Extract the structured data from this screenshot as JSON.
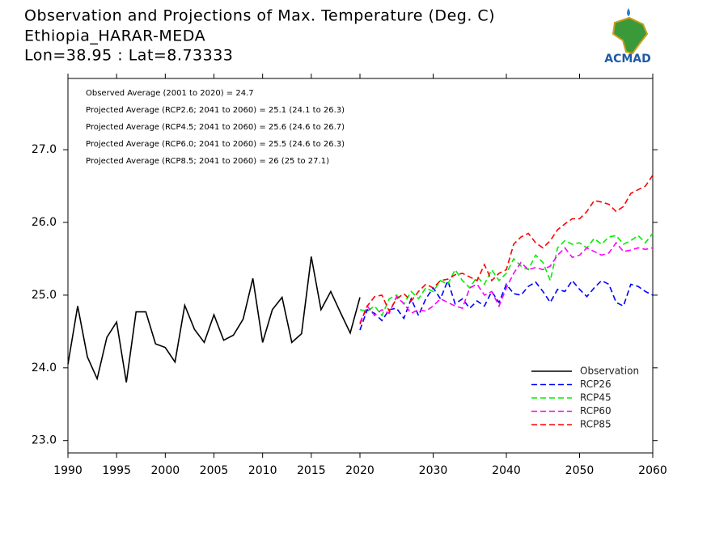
{
  "chart_data": {
    "type": "line",
    "title": "Observation and Projections of Max. Temperature (Deg. C)",
    "subtitle": "Ethiopia_HARAR-MEDA",
    "location": "Lon=38.95 : Lat=8.73333",
    "logo_text": "ACMAD",
    "annotations": [
      "Observed Average (2001 to 2020) = 24.7",
      "Projected Average (RCP2.6; 2041 to 2060) = 25.1 (24.1 to 26.3)",
      "Projected Average (RCP4.5; 2041 to 2060) = 25.6 (24.6 to 26.7)",
      "Projected Average (RCP6.0; 2041 to 2060) = 25.5 (24.6 to 26.3)",
      "Projected Average (RCP8.5; 2041 to 2060) = 26 (25 to 27.1)"
    ],
    "xlim": [
      1990,
      2060
    ],
    "xticks": [
      1990,
      1995,
      2000,
      2005,
      2010,
      2015,
      2020,
      2030,
      2040,
      2050,
      2060
    ],
    "ylim": [
      22.83,
      27.98
    ],
    "yticks": [
      {
        "value": 23,
        "label": "23.0"
      },
      {
        "value": 24,
        "label": "24.0"
      },
      {
        "value": 25,
        "label": "25.0"
      },
      {
        "value": 26,
        "label": "26.0"
      },
      {
        "value": 27,
        "label": "27.0"
      }
    ],
    "legend": "lower right",
    "series": [
      {
        "name": "Observation",
        "color": "#000000",
        "dashed": false,
        "x": [
          1990,
          1991,
          1992,
          1993,
          1994,
          1995,
          1996,
          1997,
          1998,
          1999,
          2000,
          2001,
          2002,
          2003,
          2004,
          2005,
          2006,
          2007,
          2008,
          2009,
          2010,
          2011,
          2012,
          2013,
          2014,
          2015,
          2016,
          2017,
          2018,
          2019,
          2020
        ],
        "values": [
          24.05,
          24.85,
          24.15,
          23.85,
          24.42,
          24.63,
          23.8,
          24.77,
          24.77,
          24.33,
          24.28,
          24.08,
          24.86,
          24.53,
          24.35,
          24.73,
          24.38,
          24.45,
          24.67,
          25.23,
          24.35,
          24.8,
          24.97,
          24.35,
          24.47,
          25.53,
          24.8,
          25.05,
          24.76,
          24.48,
          24.97
        ]
      },
      {
        "name": "RCP26",
        "color": "#0000ff",
        "dashed": true,
        "x": [
          2020,
          2021,
          2022,
          2023,
          2024,
          2025,
          2026,
          2027,
          2028,
          2029,
          2030,
          2031,
          2032,
          2033,
          2034,
          2035,
          2036,
          2037,
          2038,
          2039,
          2040,
          2041,
          2042,
          2043,
          2044,
          2045,
          2046,
          2047,
          2048,
          2049,
          2050,
          2051,
          2052,
          2053,
          2054,
          2055,
          2056,
          2057,
          2058,
          2059,
          2060
        ],
        "values": [
          24.52,
          24.8,
          24.75,
          24.65,
          24.8,
          24.82,
          24.68,
          24.95,
          24.72,
          24.95,
          25.1,
          24.95,
          25.2,
          24.88,
          24.95,
          24.82,
          24.92,
          24.85,
          25.05,
          24.9,
          25.15,
          25.02,
          25.0,
          25.12,
          25.18,
          25.05,
          24.9,
          25.08,
          25.05,
          25.2,
          25.08,
          24.98,
          25.1,
          25.2,
          25.15,
          24.9,
          24.85,
          25.15,
          25.12,
          25.05,
          25.0
        ]
      },
      {
        "name": "RCP45",
        "color": "#00ee00",
        "dashed": true,
        "x": [
          2020,
          2021,
          2022,
          2023,
          2024,
          2025,
          2026,
          2027,
          2028,
          2029,
          2030,
          2031,
          2032,
          2033,
          2034,
          2035,
          2036,
          2037,
          2038,
          2039,
          2040,
          2041,
          2042,
          2043,
          2044,
          2045,
          2046,
          2047,
          2048,
          2049,
          2050,
          2051,
          2052,
          2053,
          2054,
          2055,
          2056,
          2057,
          2058,
          2059,
          2060
        ],
        "values": [
          24.8,
          24.78,
          24.85,
          24.72,
          24.95,
          25.0,
          24.88,
          25.05,
          24.95,
          25.1,
          25.05,
          25.2,
          25.15,
          25.35,
          25.2,
          25.1,
          25.25,
          25.15,
          25.35,
          25.2,
          25.3,
          25.5,
          25.4,
          25.35,
          25.55,
          25.45,
          25.2,
          25.65,
          25.75,
          25.7,
          25.72,
          25.65,
          25.78,
          25.7,
          25.8,
          25.82,
          25.7,
          25.75,
          25.82,
          25.72,
          25.85
        ]
      },
      {
        "name": "RCP60",
        "color": "#ff00ff",
        "dashed": true,
        "x": [
          2020,
          2021,
          2022,
          2023,
          2024,
          2025,
          2026,
          2027,
          2028,
          2029,
          2030,
          2031,
          2032,
          2033,
          2034,
          2035,
          2036,
          2037,
          2038,
          2039,
          2040,
          2041,
          2042,
          2043,
          2044,
          2045,
          2046,
          2047,
          2048,
          2049,
          2050,
          2051,
          2052,
          2053,
          2054,
          2055,
          2056,
          2057,
          2058,
          2059,
          2060
        ],
        "values": [
          24.62,
          24.85,
          24.72,
          24.8,
          24.75,
          24.98,
          24.88,
          24.75,
          24.8,
          24.78,
          24.85,
          24.95,
          24.9,
          24.85,
          24.82,
          25.1,
          25.15,
          25.0,
          25.05,
          24.85,
          25.1,
          25.3,
          25.45,
          25.35,
          25.38,
          25.35,
          25.4,
          25.55,
          25.65,
          25.52,
          25.55,
          25.65,
          25.6,
          25.55,
          25.58,
          25.72,
          25.6,
          25.62,
          25.65,
          25.63,
          25.65
        ]
      },
      {
        "name": "RCP85",
        "color": "#ff0000",
        "dashed": true,
        "x": [
          2020,
          2021,
          2022,
          2023,
          2024,
          2025,
          2026,
          2027,
          2028,
          2029,
          2030,
          2031,
          2032,
          2033,
          2034,
          2035,
          2036,
          2037,
          2038,
          2039,
          2040,
          2041,
          2042,
          2043,
          2044,
          2045,
          2046,
          2047,
          2048,
          2049,
          2050,
          2051,
          2052,
          2053,
          2054,
          2055,
          2056,
          2057,
          2058,
          2059,
          2060
        ],
        "values": [
          24.6,
          24.85,
          24.98,
          25.0,
          24.78,
          24.95,
          25.02,
          24.92,
          25.05,
          25.15,
          25.1,
          25.2,
          25.22,
          25.28,
          25.3,
          25.25,
          25.2,
          25.42,
          25.2,
          25.3,
          25.35,
          25.7,
          25.8,
          25.85,
          25.72,
          25.65,
          25.75,
          25.9,
          25.98,
          26.05,
          26.05,
          26.15,
          26.3,
          26.28,
          26.25,
          26.15,
          26.22,
          26.4,
          26.45,
          26.5,
          26.65
        ]
      }
    ]
  }
}
